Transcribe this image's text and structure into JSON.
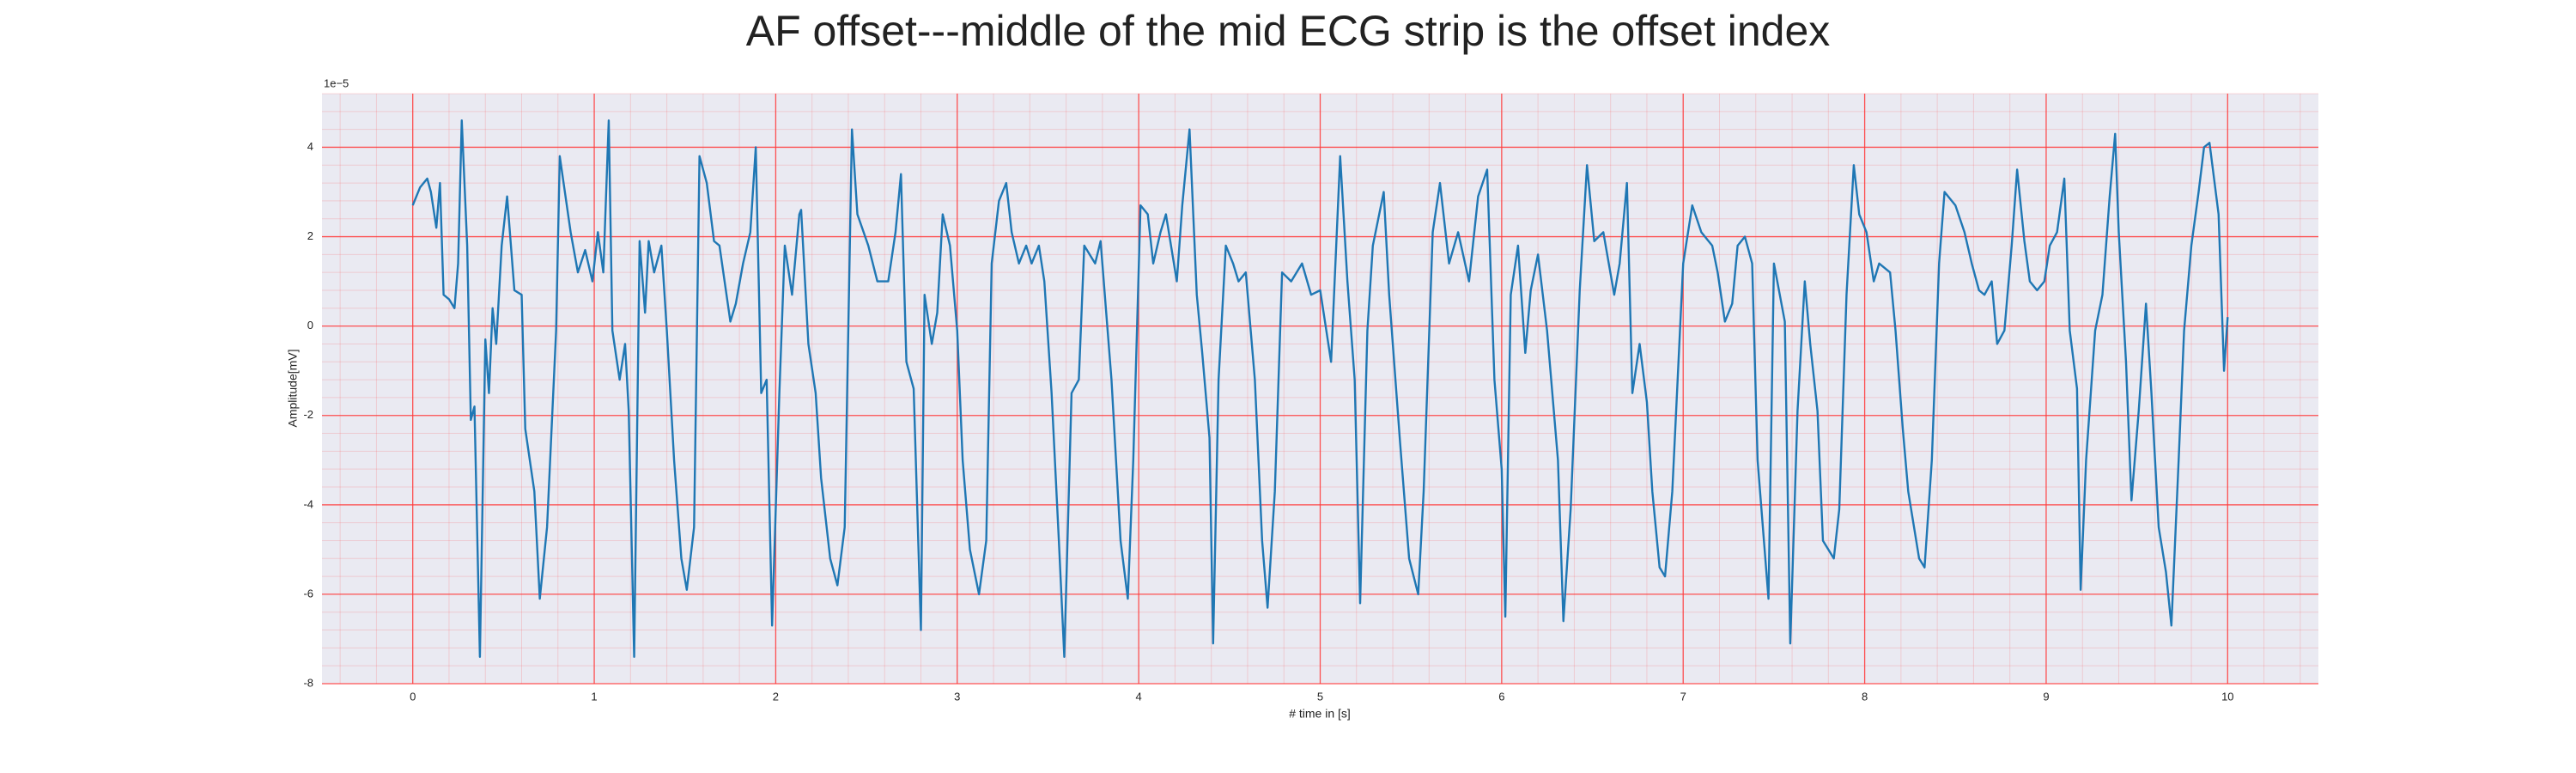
{
  "chart_data": {
    "type": "line",
    "title": "AF offset---middle of the mid ECG strip is the offset index",
    "x_label": "# time in [s]",
    "y_label": "Amplitude[mV]",
    "y_offset_label": "1e−5",
    "xlim": [
      -0.5,
      10.5
    ],
    "ylim": [
      -8,
      5.2
    ],
    "xticks": [
      0,
      1,
      2,
      3,
      4,
      5,
      6,
      7,
      8,
      9,
      10
    ],
    "yticks": [
      -8,
      -6,
      -4,
      -2,
      0,
      2,
      4
    ],
    "grid": true,
    "grid_color": "#ff3b3b",
    "minor_divisions": 5,
    "background": "#eaeaf2",
    "series": [
      {
        "color": "#1f77b4",
        "x": [
          0,
          0.04,
          0.08,
          0.1,
          0.13,
          0.15,
          0.17,
          0.2,
          0.23,
          0.25,
          0.27,
          0.3,
          0.32,
          0.34,
          0.37,
          0.4,
          0.42,
          0.44,
          0.46,
          0.49,
          0.52,
          0.56,
          0.6,
          0.62,
          0.67,
          0.7,
          0.74,
          0.79,
          0.81,
          0.87,
          0.91,
          0.95,
          0.99,
          1.02,
          1.05,
          1.08,
          1.1,
          1.14,
          1.17,
          1.19,
          1.22,
          1.25,
          1.28,
          1.3,
          1.33,
          1.37,
          1.4,
          1.44,
          1.48,
          1.51,
          1.55,
          1.58,
          1.62,
          1.66,
          1.69,
          1.75,
          1.78,
          1.82,
          1.86,
          1.89,
          1.92,
          1.95,
          1.98,
          2.02,
          2.05,
          2.09,
          2.13,
          2.14,
          2.18,
          2.22,
          2.25,
          2.3,
          2.34,
          2.38,
          2.42,
          2.45,
          2.51,
          2.56,
          2.62,
          2.66,
          2.69,
          2.72,
          2.76,
          2.8,
          2.82,
          2.86,
          2.89,
          2.92,
          2.96,
          3.0,
          3.03,
          3.07,
          3.12,
          3.16,
          3.19,
          3.23,
          3.27,
          3.3,
          3.34,
          3.38,
          3.41,
          3.45,
          3.48,
          3.52,
          3.56,
          3.59,
          3.63,
          3.67,
          3.7,
          3.76,
          3.79,
          3.85,
          3.9,
          3.94,
          3.97,
          4.01,
          4.05,
          4.08,
          4.12,
          4.15,
          4.21,
          4.24,
          4.28,
          4.32,
          4.35,
          4.39,
          4.41,
          4.44,
          4.48,
          4.52,
          4.55,
          4.59,
          4.64,
          4.68,
          4.71,
          4.75,
          4.79,
          4.84,
          4.9,
          4.95,
          5.0,
          5.06,
          5.11,
          5.15,
          5.19,
          5.22,
          5.26,
          5.29,
          5.35,
          5.38,
          5.44,
          5.49,
          5.54,
          5.57,
          5.62,
          5.66,
          5.71,
          5.76,
          5.82,
          5.87,
          5.92,
          5.96,
          6.0,
          6.02,
          6.05,
          6.09,
          6.13,
          6.16,
          6.2,
          6.25,
          6.31,
          6.34,
          6.38,
          6.43,
          6.47,
          6.51,
          6.56,
          6.62,
          6.65,
          6.69,
          6.72,
          6.76,
          6.8,
          6.83,
          6.87,
          6.9,
          6.94,
          7.0,
          7.05,
          7.1,
          7.16,
          7.19,
          7.23,
          7.27,
          7.3,
          7.34,
          7.38,
          7.41,
          7.47,
          7.5,
          7.56,
          7.59,
          7.63,
          7.67,
          7.7,
          7.74,
          7.77,
          7.83,
          7.86,
          7.9,
          7.94,
          7.97,
          8.01,
          8.05,
          8.08,
          8.14,
          8.17,
          8.21,
          8.24,
          8.3,
          8.33,
          8.37,
          8.41,
          8.44,
          8.5,
          8.55,
          8.59,
          8.63,
          8.66,
          8.7,
          8.73,
          8.77,
          8.81,
          8.84,
          8.88,
          8.91,
          8.95,
          8.99,
          9.02,
          9.06,
          9.1,
          9.13,
          9.17,
          9.19,
          9.22,
          9.27,
          9.31,
          9.35,
          9.38,
          9.4,
          9.44,
          9.47,
          9.51,
          9.55,
          9.58,
          9.62,
          9.66,
          9.69,
          9.73,
          9.76,
          9.8,
          9.84,
          9.87,
          9.9,
          9.95,
          9.98,
          10.0
        ],
        "values": [
          2.7,
          3.1,
          3.3,
          3.0,
          2.2,
          3.2,
          0.7,
          0.6,
          0.4,
          1.4,
          4.6,
          1.8,
          -2.1,
          -1.8,
          -7.4,
          -0.3,
          -1.5,
          0.4,
          -0.4,
          1.8,
          2.9,
          0.8,
          0.7,
          -2.3,
          -3.7,
          -6.1,
          -4.5,
          -0.1,
          3.8,
          2.1,
          1.2,
          1.7,
          1.0,
          2.1,
          1.2,
          4.6,
          -0.1,
          -1.2,
          -0.4,
          -1.9,
          -7.4,
          1.9,
          0.3,
          1.9,
          1.2,
          1.8,
          -0.1,
          -3.0,
          -5.2,
          -5.9,
          -4.5,
          3.8,
          3.2,
          1.9,
          1.8,
          0.1,
          0.5,
          1.4,
          2.1,
          4.0,
          -1.5,
          -1.2,
          -6.7,
          -1.5,
          1.8,
          0.7,
          2.5,
          2.6,
          -0.4,
          -1.5,
          -3.4,
          -5.2,
          -5.8,
          -4.5,
          4.4,
          2.5,
          1.8,
          1.0,
          1.0,
          2.1,
          3.4,
          -0.8,
          -1.4,
          -6.8,
          0.7,
          -0.4,
          0.3,
          2.5,
          1.8,
          -0.1,
          -3.0,
          -5.0,
          -6.0,
          -4.8,
          1.4,
          2.8,
          3.2,
          2.1,
          1.4,
          1.8,
          1.4,
          1.8,
          1.0,
          -1.5,
          -4.8,
          -7.4,
          -1.5,
          -1.2,
          1.8,
          1.4,
          1.9,
          -1.2,
          -4.8,
          -6.1,
          -3.0,
          2.7,
          2.5,
          1.4,
          2.1,
          2.5,
          1.0,
          2.7,
          4.4,
          0.7,
          -0.6,
          -2.5,
          -7.1,
          -1.2,
          1.8,
          1.4,
          1.0,
          1.2,
          -1.2,
          -4.8,
          -6.3,
          -3.7,
          1.2,
          1.0,
          1.4,
          0.7,
          0.8,
          -0.8,
          3.8,
          1.0,
          -1.2,
          -6.2,
          -0.1,
          1.8,
          3.0,
          0.7,
          -2.6,
          -5.2,
          -6.0,
          -3.7,
          2.1,
          3.2,
          1.4,
          2.1,
          1.0,
          2.9,
          3.5,
          -1.2,
          -3.2,
          -6.5,
          0.7,
          1.8,
          -0.6,
          0.8,
          1.6,
          -0.1,
          -3.0,
          -6.6,
          -4.1,
          0.8,
          3.6,
          1.9,
          2.1,
          0.7,
          1.4,
          3.2,
          -1.5,
          -0.4,
          -1.7,
          -3.7,
          -5.4,
          -5.6,
          -3.7,
          1.4,
          2.7,
          2.1,
          1.8,
          1.2,
          0.1,
          0.5,
          1.8,
          2.0,
          1.4,
          -3.0,
          -6.1,
          1.4,
          0.1,
          -7.1,
          -1.9,
          1.0,
          -0.4,
          -1.9,
          -4.8,
          -5.2,
          -4.1,
          0.7,
          3.6,
          2.5,
          2.1,
          1.0,
          1.4,
          1.2,
          -0.1,
          -2.3,
          -3.7,
          -5.2,
          -5.4,
          -3.0,
          1.4,
          3.0,
          2.7,
          2.1,
          1.4,
          0.8,
          0.7,
          1.0,
          -0.4,
          -0.1,
          1.8,
          3.5,
          1.9,
          1.0,
          0.8,
          1.0,
          1.8,
          2.1,
          3.3,
          -0.1,
          -1.4,
          -5.9,
          -3.0,
          -0.1,
          0.7,
          2.9,
          4.3,
          2.1,
          -0.8,
          -3.9,
          -1.9,
          0.5,
          -1.5,
          -4.5,
          -5.5,
          -6.7,
          -3.0,
          -0.1,
          1.8,
          3.0,
          4.0,
          4.1,
          2.5,
          -1.0,
          0.2
        ]
      }
    ]
  }
}
